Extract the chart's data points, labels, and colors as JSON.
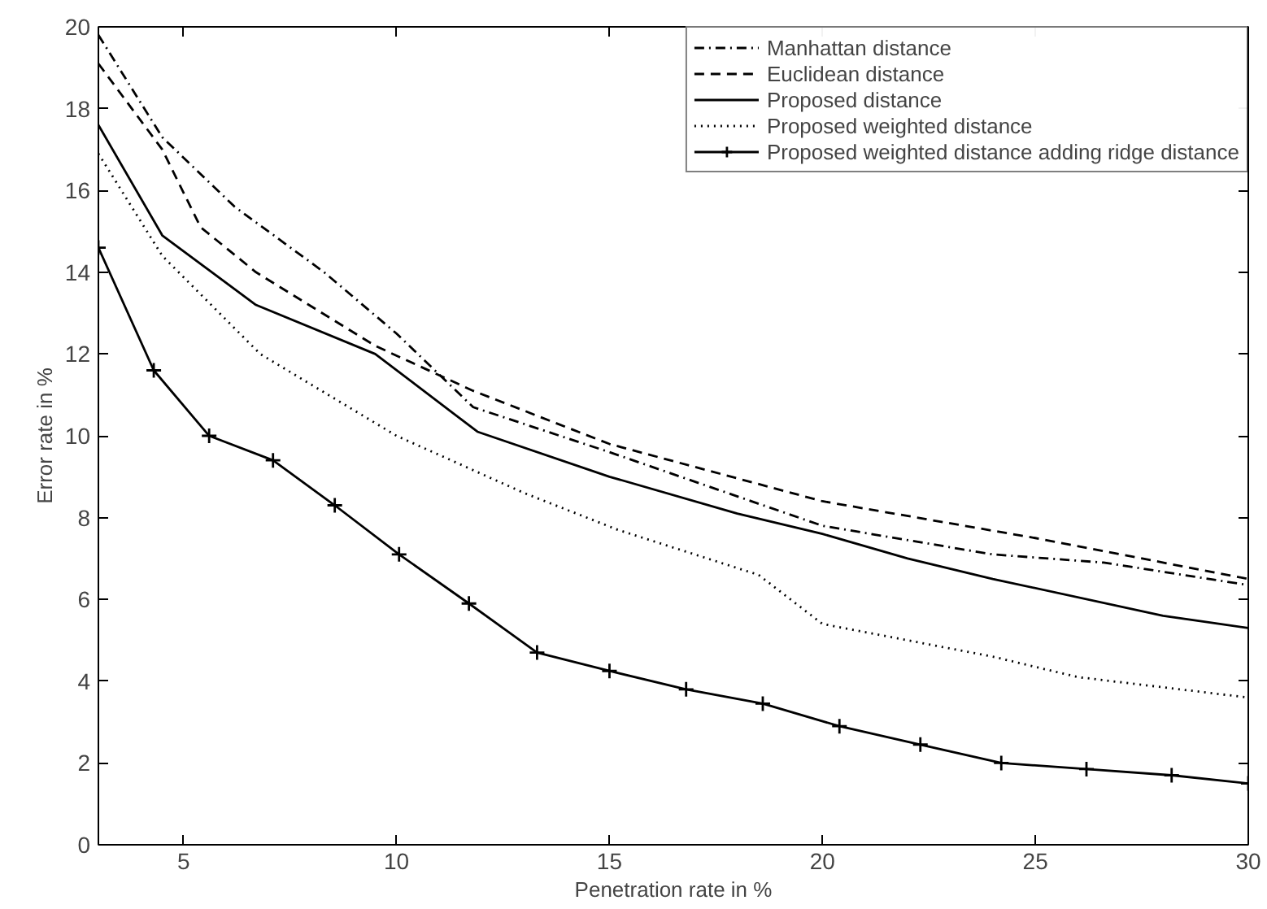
{
  "chart_data": {
    "type": "line",
    "xlabel": "Penetration rate in %",
    "ylabel": "Error rate in %",
    "xlim": [
      3,
      30
    ],
    "ylim": [
      0,
      20
    ],
    "xticks": [
      5,
      10,
      15,
      20,
      25,
      30
    ],
    "yticks": [
      0,
      2,
      4,
      6,
      8,
      10,
      12,
      14,
      16,
      18,
      20
    ],
    "grid": false,
    "legend": "top right",
    "series": [
      {
        "name": "Manhattan distance",
        "color": "#000000",
        "line_style": "dashdot",
        "marker": "none",
        "x": [
          3,
          4.5,
          6.2,
          8.3,
          10,
          11.8,
          15,
          20,
          24,
          26.6,
          30
        ],
        "values": [
          19.8,
          17.3,
          15.6,
          14.0,
          12.5,
          10.7,
          9.6,
          7.8,
          7.1,
          6.9,
          6.35
        ]
      },
      {
        "name": "Euclidean distance",
        "color": "#000000",
        "line_style": "dashed",
        "marker": "none",
        "x": [
          3,
          4.5,
          5.4,
          6.7,
          9.5,
          11.8,
          15,
          20,
          25,
          30
        ],
        "values": [
          19.1,
          17.0,
          15.1,
          14.0,
          12.2,
          11.1,
          9.8,
          8.4,
          7.5,
          6.5
        ]
      },
      {
        "name": "Proposed distance",
        "color": "#000000",
        "line_style": "solid",
        "marker": "none",
        "x": [
          3,
          4.5,
          6.7,
          9.5,
          11.9,
          15,
          18,
          20,
          22,
          24,
          28,
          30
        ],
        "values": [
          17.6,
          14.9,
          13.2,
          12.0,
          10.1,
          9.0,
          8.1,
          7.6,
          7.0,
          6.5,
          5.6,
          5.3
        ]
      },
      {
        "name": "Proposed weighted distance",
        "color": "#000000",
        "line_style": "dotted",
        "marker": "none",
        "x": [
          3,
          4.5,
          6.8,
          10,
          13,
          15.2,
          18.5,
          20,
          24,
          26,
          30
        ],
        "values": [
          16.9,
          14.4,
          12.0,
          10.0,
          8.6,
          7.7,
          6.6,
          5.4,
          4.6,
          4.1,
          3.6
        ]
      },
      {
        "name": "Proposed weighted distance adding ridge distance",
        "color": "#000000",
        "line_style": "solid",
        "marker": "cross",
        "x": [
          3,
          4.3,
          5.6,
          7.1,
          8.55,
          10.06,
          11.7,
          13.3,
          15,
          16.8,
          18.6,
          20.4,
          22.3,
          24.2,
          26.2,
          28.2,
          30
        ],
        "values": [
          14.6,
          11.6,
          10.0,
          9.4,
          8.3,
          7.1,
          5.9,
          4.7,
          4.25,
          3.8,
          3.45,
          2.9,
          2.45,
          2.0,
          1.85,
          1.7,
          1.5
        ]
      }
    ]
  }
}
